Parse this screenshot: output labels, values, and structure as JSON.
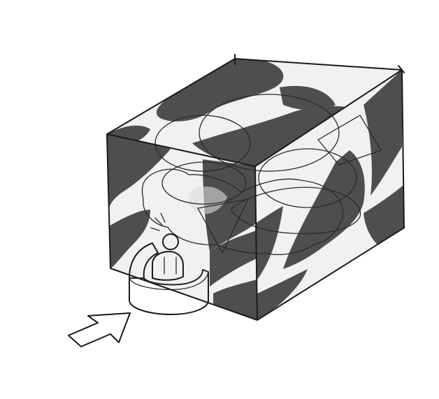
{
  "colors": {
    "background": "#ffffff",
    "cube_light": "#f1f1f1",
    "cube_dark": "#4e4e4e",
    "booth": "#a9a9a9",
    "booth_dark": "#8e8e8e",
    "person": "#ffffff",
    "ink": "#1a1a1a"
  },
  "icons": {
    "entrance": "arrow-icon",
    "occupant": "person-icon"
  }
}
